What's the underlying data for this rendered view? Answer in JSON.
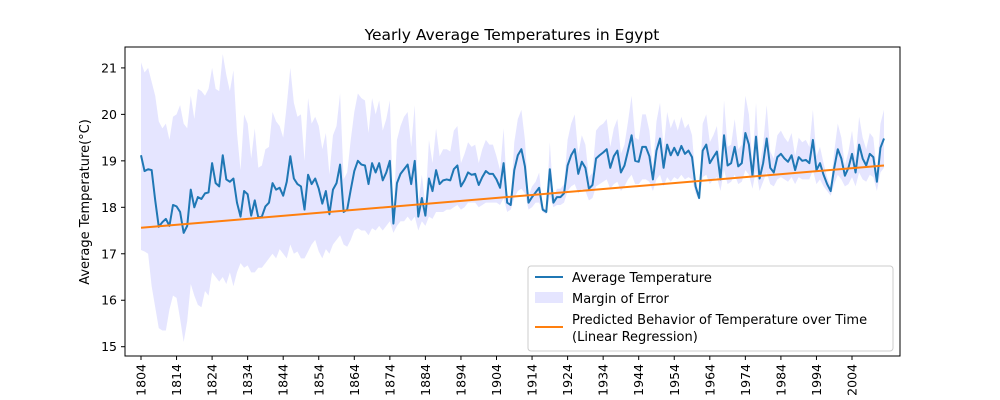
{
  "chart_data": {
    "type": "line",
    "title": "Yearly Average Temperatures in Egypt",
    "xlabel": "",
    "ylabel": "Average Temperature(°C)",
    "xlim": [
      1799.5,
      2017.5
    ],
    "ylim": [
      14.8,
      21.45
    ],
    "grid": false,
    "legend_position": "lower-right",
    "x_ticks": [
      1804,
      1814,
      1824,
      1834,
      1844,
      1854,
      1864,
      1874,
      1884,
      1894,
      1904,
      1914,
      1924,
      1934,
      1944,
      1954,
      1964,
      1974,
      1984,
      1994,
      2004
    ],
    "y_ticks": [
      15,
      16,
      17,
      18,
      19,
      20,
      21
    ],
    "x": [
      1804,
      1805,
      1806,
      1807,
      1808,
      1809,
      1810,
      1811,
      1812,
      1813,
      1814,
      1815,
      1816,
      1817,
      1818,
      1819,
      1820,
      1821,
      1822,
      1823,
      1824,
      1825,
      1826,
      1827,
      1828,
      1829,
      1830,
      1831,
      1832,
      1833,
      1834,
      1835,
      1836,
      1837,
      1838,
      1839,
      1840,
      1841,
      1842,
      1843,
      1844,
      1845,
      1846,
      1847,
      1848,
      1849,
      1850,
      1851,
      1852,
      1853,
      1854,
      1855,
      1856,
      1857,
      1858,
      1859,
      1860,
      1861,
      1862,
      1863,
      1864,
      1865,
      1866,
      1867,
      1868,
      1869,
      1870,
      1871,
      1872,
      1873,
      1874,
      1875,
      1876,
      1877,
      1878,
      1879,
      1880,
      1881,
      1882,
      1883,
      1884,
      1885,
      1886,
      1887,
      1888,
      1889,
      1890,
      1891,
      1892,
      1893,
      1894,
      1895,
      1896,
      1897,
      1898,
      1899,
      1900,
      1901,
      1902,
      1903,
      1904,
      1905,
      1906,
      1907,
      1908,
      1909,
      1910,
      1911,
      1912,
      1913,
      1914,
      1915,
      1916,
      1917,
      1918,
      1919,
      1920,
      1921,
      1922,
      1923,
      1924,
      1925,
      1926,
      1927,
      1928,
      1929,
      1930,
      1931,
      1932,
      1933,
      1934,
      1935,
      1936,
      1937,
      1938,
      1939,
      1940,
      1941,
      1942,
      1943,
      1944,
      1945,
      1946,
      1947,
      1948,
      1949,
      1950,
      1951,
      1952,
      1953,
      1954,
      1955,
      1956,
      1957,
      1958,
      1959,
      1960,
      1961,
      1962,
      1963,
      1964,
      1965,
      1966,
      1967,
      1968,
      1969,
      1970,
      1971,
      1972,
      1973,
      1974,
      1975,
      1976,
      1977,
      1978,
      1979,
      1980,
      1981,
      1982,
      1983,
      1984,
      1985,
      1986,
      1987,
      1988,
      1989,
      1990,
      1991,
      1992,
      1993,
      1994,
      1995,
      1996,
      1997,
      1998,
      1999,
      2000,
      2001,
      2002,
      2003,
      2004,
      2005,
      2006,
      2007,
      2008,
      2009,
      2010,
      2011,
      2012,
      2013
    ],
    "series": [
      {
        "name": "Average Temperature",
        "color": "#1f77b4",
        "values": [
          19.12,
          18.78,
          18.82,
          18.8,
          18.15,
          17.58,
          17.68,
          17.75,
          17.6,
          18.05,
          18.02,
          17.9,
          17.45,
          17.6,
          18.38,
          18.0,
          18.22,
          18.18,
          18.3,
          18.32,
          18.95,
          18.52,
          18.45,
          19.12,
          18.6,
          18.55,
          18.62,
          18.1,
          17.8,
          18.35,
          18.28,
          17.82,
          18.15,
          17.78,
          17.8,
          18.02,
          18.1,
          18.52,
          18.38,
          18.42,
          18.25,
          18.55,
          19.1,
          18.62,
          18.5,
          18.45,
          17.95,
          18.7,
          18.5,
          18.62,
          18.4,
          18.08,
          18.35,
          17.85,
          18.38,
          18.52,
          18.92,
          17.9,
          17.95,
          18.38,
          18.78,
          19.0,
          18.92,
          18.9,
          18.5,
          18.95,
          18.75,
          18.95,
          18.58,
          18.75,
          19.0,
          17.65,
          18.52,
          18.72,
          18.82,
          18.92,
          18.5,
          19.0,
          17.8,
          18.2,
          17.82,
          18.62,
          18.35,
          18.8,
          18.5,
          18.58,
          18.6,
          18.58,
          18.82,
          18.9,
          18.45,
          18.58,
          18.75,
          18.7,
          18.72,
          18.48,
          18.65,
          18.78,
          18.72,
          18.72,
          18.6,
          18.42,
          18.95,
          18.1,
          18.05,
          18.8,
          19.12,
          19.25,
          18.88,
          18.1,
          18.22,
          18.32,
          18.42,
          17.95,
          17.9,
          18.82,
          18.1,
          18.22,
          18.22,
          18.3,
          18.9,
          19.12,
          19.25,
          18.72,
          18.98,
          18.85,
          18.4,
          18.48,
          19.05,
          19.12,
          19.18,
          19.25,
          18.85,
          19.1,
          19.22,
          18.75,
          18.9,
          19.22,
          19.55,
          19.0,
          18.98,
          19.3,
          19.3,
          19.1,
          18.6,
          19.22,
          19.48,
          18.85,
          19.35,
          19.12,
          19.28,
          19.12,
          19.32,
          19.15,
          19.22,
          19.08,
          18.45,
          18.2,
          19.22,
          19.35,
          18.95,
          19.08,
          19.2,
          18.6,
          19.55,
          18.9,
          18.95,
          19.3,
          18.88,
          18.95,
          19.6,
          19.35,
          18.68,
          19.52,
          18.62,
          18.95,
          19.48,
          18.85,
          18.75,
          19.08,
          19.15,
          19.05,
          18.98,
          19.12,
          18.8,
          19.08,
          19.0,
          19.02,
          18.95,
          19.45,
          18.8,
          18.95,
          18.7,
          18.5,
          18.35,
          18.85,
          19.25,
          19.05,
          18.68,
          18.85,
          19.15,
          18.75,
          19.35,
          19.05,
          18.9,
          19.15,
          19.08,
          18.55,
          19.28,
          19.48
        ],
        "values_tail": []
      },
      {
        "name": "Margin of Error",
        "color": "#e5e5ff",
        "lower": [
          17.08,
          17.05,
          17.0,
          16.3,
          15.85,
          15.4,
          15.35,
          15.35,
          15.8,
          16.1,
          16.05,
          15.6,
          15.1,
          15.55,
          16.35,
          16.1,
          15.9,
          15.85,
          16.2,
          16.1,
          16.6,
          16.5,
          16.4,
          16.5,
          16.35,
          16.6,
          16.3,
          16.6,
          16.8,
          16.7,
          16.75,
          16.6,
          16.6,
          16.7,
          16.7,
          16.8,
          16.9,
          17.0,
          16.9,
          17.1,
          17.0,
          16.9,
          17.2,
          17.0,
          17.05,
          16.9,
          16.9,
          17.05,
          17.2,
          17.3,
          17.05,
          16.9,
          17.1,
          17.0,
          17.2,
          17.3,
          17.4,
          17.2,
          17.15,
          17.3,
          17.5,
          17.55,
          17.5,
          17.5,
          17.4,
          17.55,
          17.5,
          17.6,
          17.5,
          17.6,
          17.7,
          17.45,
          17.6,
          17.7,
          17.7,
          17.8,
          17.7,
          17.8,
          17.5,
          17.7,
          17.6,
          17.8,
          17.75,
          17.9,
          17.9,
          17.9,
          17.95,
          17.95,
          18.0,
          18.05,
          17.95,
          18.0,
          18.1,
          18.1,
          18.1,
          18.0,
          18.05,
          18.1,
          18.1,
          18.1,
          18.1,
          18.05,
          18.2,
          17.9,
          17.95,
          18.2,
          18.35,
          18.4,
          18.3,
          17.95,
          18.0,
          18.1,
          18.1,
          17.9,
          17.85,
          18.25,
          18.0,
          18.05,
          18.05,
          18.1,
          18.35,
          18.45,
          18.5,
          18.3,
          18.4,
          18.35,
          18.15,
          18.2,
          18.45,
          18.5,
          18.55,
          18.6,
          18.4,
          18.5,
          18.55,
          18.35,
          18.45,
          18.6,
          18.7,
          18.5,
          18.5,
          18.6,
          18.6,
          18.55,
          18.35,
          18.6,
          18.7,
          18.45,
          18.65,
          18.55,
          18.65,
          18.6,
          18.7,
          18.6,
          18.65,
          18.6,
          18.3,
          18.15,
          18.65,
          18.7,
          18.5,
          18.6,
          18.65,
          18.35,
          18.8,
          18.5,
          18.55,
          18.7,
          18.5,
          18.55,
          18.8,
          18.7,
          18.4,
          18.8,
          18.35,
          18.55,
          18.75,
          18.5,
          18.45,
          18.6,
          18.65,
          18.6,
          18.55,
          18.65,
          18.5,
          18.65,
          18.6,
          18.6,
          18.6,
          18.8,
          18.5,
          18.6,
          18.45,
          18.35,
          18.25,
          18.5,
          18.7,
          18.6,
          18.45,
          18.5,
          18.65,
          18.45,
          18.75,
          18.6,
          18.55,
          18.7,
          18.65,
          18.35,
          18.75,
          18.85
        ],
        "upper": [
          21.12,
          20.9,
          21.0,
          20.7,
          20.4,
          19.85,
          19.7,
          19.8,
          19.45,
          19.95,
          20.0,
          20.2,
          19.8,
          19.7,
          20.4,
          19.9,
          20.55,
          20.5,
          20.4,
          20.55,
          21.0,
          20.55,
          20.5,
          21.3,
          20.85,
          20.5,
          20.95,
          19.6,
          18.8,
          20.0,
          19.8,
          19.05,
          19.7,
          18.85,
          18.9,
          19.25,
          19.3,
          20.05,
          19.85,
          19.75,
          19.5,
          20.2,
          21.0,
          20.25,
          19.95,
          20.0,
          19.0,
          20.35,
          19.8,
          19.95,
          19.75,
          19.25,
          19.6,
          18.7,
          19.55,
          19.75,
          20.45,
          18.6,
          18.75,
          19.45,
          20.05,
          20.45,
          20.35,
          20.3,
          19.6,
          20.35,
          20.0,
          20.3,
          19.65,
          19.9,
          20.3,
          17.85,
          19.45,
          19.75,
          19.95,
          20.05,
          19.3,
          20.2,
          18.1,
          18.7,
          18.05,
          19.45,
          18.95,
          19.7,
          19.1,
          19.25,
          19.25,
          19.2,
          19.65,
          19.75,
          18.95,
          19.15,
          19.4,
          19.3,
          19.35,
          18.95,
          19.25,
          19.45,
          19.35,
          19.35,
          19.1,
          18.8,
          19.7,
          18.3,
          18.15,
          19.4,
          19.9,
          20.1,
          19.45,
          18.25,
          18.45,
          18.55,
          18.75,
          18.0,
          17.95,
          19.4,
          18.2,
          18.4,
          18.4,
          18.5,
          19.45,
          19.8,
          20.0,
          19.15,
          19.55,
          19.35,
          18.65,
          18.75,
          19.65,
          19.75,
          19.8,
          19.9,
          19.3,
          19.7,
          19.9,
          19.15,
          19.35,
          19.85,
          20.4,
          19.5,
          19.45,
          20.0,
          20.0,
          19.65,
          18.85,
          19.85,
          20.25,
          19.25,
          20.05,
          19.7,
          19.9,
          19.65,
          19.95,
          19.7,
          19.8,
          19.55,
          18.6,
          18.25,
          19.8,
          20.0,
          19.4,
          19.55,
          19.75,
          18.85,
          20.3,
          19.3,
          19.35,
          19.9,
          19.25,
          19.35,
          20.4,
          20.0,
          18.95,
          20.25,
          18.9,
          19.35,
          20.2,
          19.2,
          19.05,
          19.55,
          19.65,
          19.5,
          19.4,
          19.6,
          19.1,
          19.5,
          19.4,
          19.45,
          19.3,
          20.1,
          19.1,
          19.3,
          18.95,
          18.65,
          18.45,
          19.2,
          19.8,
          19.5,
          18.9,
          19.2,
          19.65,
          19.05,
          19.95,
          19.5,
          19.25,
          19.6,
          19.5,
          18.75,
          19.8,
          20.1
        ]
      },
      {
        "name": "Predicted Behavior of Temperature over Time\n(Linear Regression)",
        "color": "#ff7f0e",
        "x": [
          1804,
          2013
        ],
        "values": [
          17.56,
          18.9
        ]
      }
    ],
    "legend": {
      "entries": [
        "Average Temperature",
        "Margin of Error",
        "Predicted Behavior of Temperature over Time",
        "(Linear Regression)"
      ]
    }
  }
}
